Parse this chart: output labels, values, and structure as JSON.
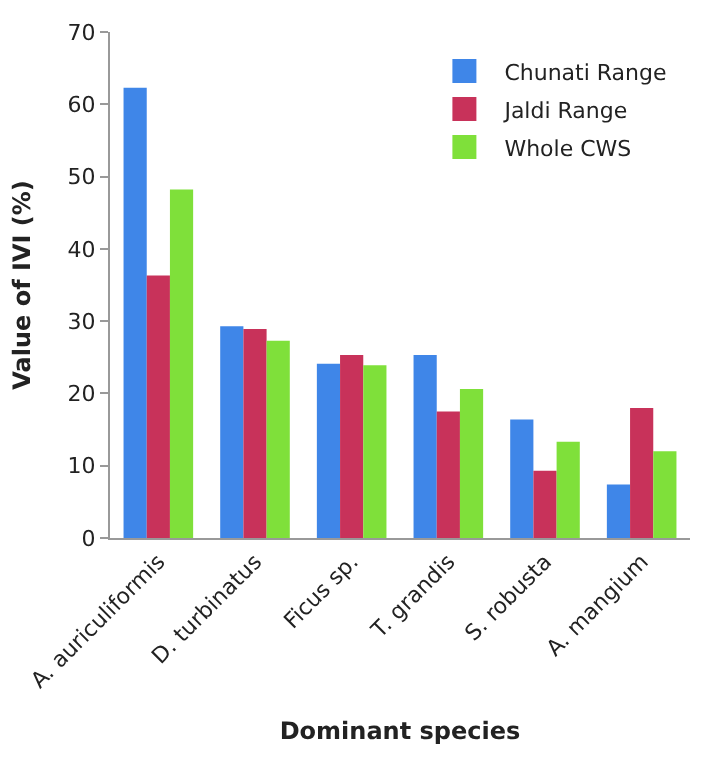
{
  "chart_data": {
    "type": "bar",
    "xlabel": "Dominant species",
    "ylabel": "Value of IVI (%)",
    "categories": [
      "A. auriculiformis",
      "D. turbinatus",
      "Ficus sp.",
      "T. grandis",
      "S. robusta",
      "A. mangium"
    ],
    "series": [
      {
        "name": "Chunati Range",
        "color": "#3f86e8",
        "values": [
          62.3,
          29.3,
          24.1,
          25.3,
          16.4,
          7.4
        ]
      },
      {
        "name": "Jaldi Range",
        "color": "#c8325a",
        "values": [
          36.3,
          28.9,
          25.3,
          17.5,
          9.3,
          18.0
        ]
      },
      {
        "name": "Whole CWS",
        "color": "#7fe03a",
        "values": [
          48.2,
          27.3,
          23.9,
          20.6,
          13.3,
          12.0
        ]
      }
    ],
    "ylim": [
      0,
      70
    ],
    "yticks": [
      0,
      10,
      20,
      30,
      40,
      50,
      60,
      70
    ],
    "legend": "top right"
  }
}
